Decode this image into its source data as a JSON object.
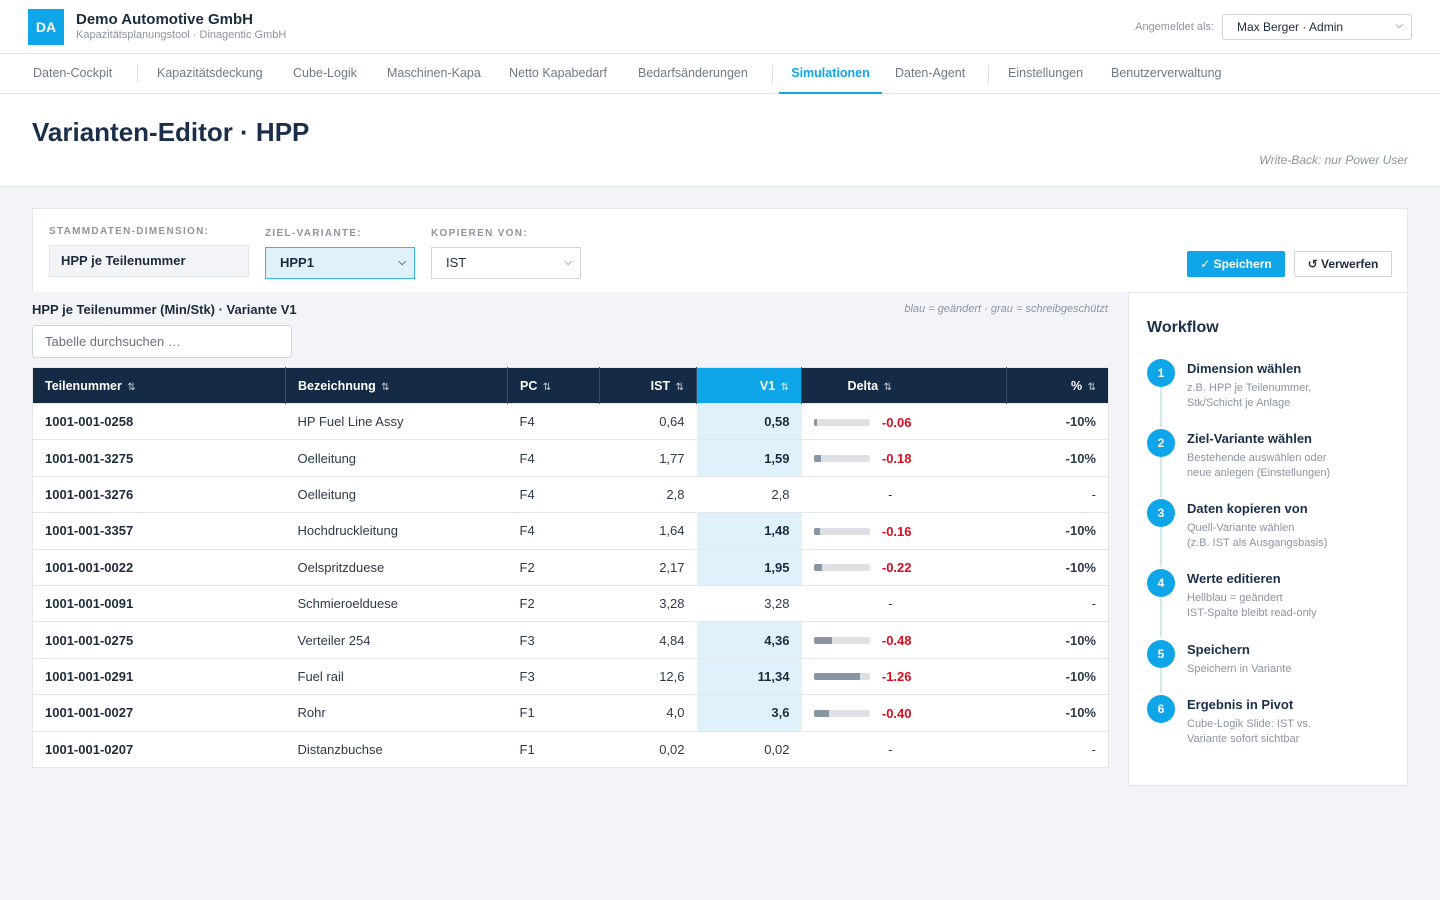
{
  "header": {
    "logo": "DA",
    "company": "Demo Automotive GmbH",
    "subtitle": "Kapazitätsplanungstool · Dinagentic GmbH",
    "login_label": "Angemeldet als:",
    "user": "Max Berger · Admin"
  },
  "nav": {
    "items": [
      {
        "label": "Daten-Cockpit"
      },
      {
        "label": "Kapazitätsdeckung"
      },
      {
        "label": "Cube-Logik"
      },
      {
        "label": "Maschinen-Kapa"
      },
      {
        "label": "Netto Kapabedarf"
      },
      {
        "label": "Bedarfsänderungen"
      },
      {
        "label": "Simulationen"
      },
      {
        "label": "Daten-Agent"
      },
      {
        "label": "Einstellungen"
      },
      {
        "label": "Benutzerverwaltung"
      }
    ],
    "active": "Simulationen"
  },
  "page": {
    "title": "Varianten-Editor · HPP",
    "writeback_note": "Write-Back: nur Power User"
  },
  "controls": {
    "dimension_label": "Stammdaten-Dimension:",
    "dimension_value": "HPP je Teilenummer",
    "target_label": "Ziel-Variante:",
    "target_value": "HPP1",
    "copy_label": "Kopieren von:",
    "copy_value": "IST",
    "save_label": "✓ Speichern",
    "discard_label": "↺ Verwerfen"
  },
  "table": {
    "title": "HPP je Teilenummer (Min/Stk) · Variante V1",
    "legend": "blau = geändert · grau = schreibgeschützt",
    "search_placeholder": "Tabelle durchsuchen …",
    "sort_glyph": "⇅",
    "columns": [
      "Teilenummer",
      "Bezeichnung",
      "PC",
      "IST",
      "V1",
      "Delta",
      "%"
    ],
    "rows": [
      {
        "part": "1001-001-0258",
        "name": "HP Fuel Line Assy",
        "pc": "F4",
        "ist": "0,64",
        "v1": "0,58",
        "changed": true,
        "delta": "-0.06",
        "delta_abs": 0.06,
        "pct": "-10%"
      },
      {
        "part": "1001-001-3275",
        "name": "Oelleitung",
        "pc": "F4",
        "ist": "1,77",
        "v1": "1,59",
        "changed": true,
        "delta": "-0.18",
        "delta_abs": 0.18,
        "pct": "-10%"
      },
      {
        "part": "1001-001-3276",
        "name": "Oelleitung",
        "pc": "F4",
        "ist": "2,8",
        "v1": "2,8",
        "changed": false,
        "delta": "-",
        "delta_abs": 0,
        "pct": "-"
      },
      {
        "part": "1001-001-3357",
        "name": "Hochdruckleitung",
        "pc": "F4",
        "ist": "1,64",
        "v1": "1,48",
        "changed": true,
        "delta": "-0.16",
        "delta_abs": 0.16,
        "pct": "-10%"
      },
      {
        "part": "1001-001-0022",
        "name": "Oelspritzduese",
        "pc": "F2",
        "ist": "2,17",
        "v1": "1,95",
        "changed": true,
        "delta": "-0.22",
        "delta_abs": 0.22,
        "pct": "-10%"
      },
      {
        "part": "1001-001-0091",
        "name": "Schmieroelduese",
        "pc": "F2",
        "ist": "3,28",
        "v1": "3,28",
        "changed": false,
        "delta": "-",
        "delta_abs": 0,
        "pct": "-"
      },
      {
        "part": "1001-001-0275",
        "name": "Verteiler 254",
        "pc": "F3",
        "ist": "4,84",
        "v1": "4,36",
        "changed": true,
        "delta": "-0.48",
        "delta_abs": 0.48,
        "pct": "-10%"
      },
      {
        "part": "1001-001-0291",
        "name": "Fuel rail",
        "pc": "F3",
        "ist": "12,6",
        "v1": "11,34",
        "changed": true,
        "delta": "-1.26",
        "delta_abs": 1.26,
        "pct": "-10%"
      },
      {
        "part": "1001-001-0027",
        "name": "Rohr",
        "pc": "F1",
        "ist": "4,0",
        "v1": "3,6",
        "changed": true,
        "delta": "-0.40",
        "delta_abs": 0.4,
        "pct": "-10%"
      },
      {
        "part": "1001-001-0207",
        "name": "Distanzbuchse",
        "pc": "F1",
        "ist": "0,02",
        "v1": "0,02",
        "changed": false,
        "delta": "-",
        "delta_abs": 0,
        "pct": "-"
      }
    ]
  },
  "workflow": {
    "title": "Workflow",
    "steps": [
      {
        "num": "1",
        "title": "Dimension wählen",
        "desc1": "z.B. HPP je Teilenummer,",
        "desc2": "Stk/Schicht je Anlage"
      },
      {
        "num": "2",
        "title": "Ziel-Variante wählen",
        "desc1": "Bestehende auswählen oder",
        "desc2": "neue anlegen (Einstellungen)"
      },
      {
        "num": "3",
        "title": "Daten kopieren von",
        "desc1": "Quell-Variante wählen",
        "desc2": "(z.B. IST als Ausgangsbasis)"
      },
      {
        "num": "4",
        "title": "Werte editieren",
        "desc1": "Hellblau = geändert",
        "desc2": "IST-Spalte bleibt read-only"
      },
      {
        "num": "5",
        "title": "Speichern",
        "desc1": "Speichern in Variante",
        "desc2": ""
      },
      {
        "num": "6",
        "title": "Ergebnis in Pivot",
        "desc1": "Cube-Logik Slide: IST vs.",
        "desc2": "Variante sofort sichtbar"
      }
    ]
  },
  "colors": {
    "accent": "#0ea5e9",
    "header_dark": "#142a45",
    "negative": "#d90d1e",
    "changed_bg": "#dff2fb"
  }
}
